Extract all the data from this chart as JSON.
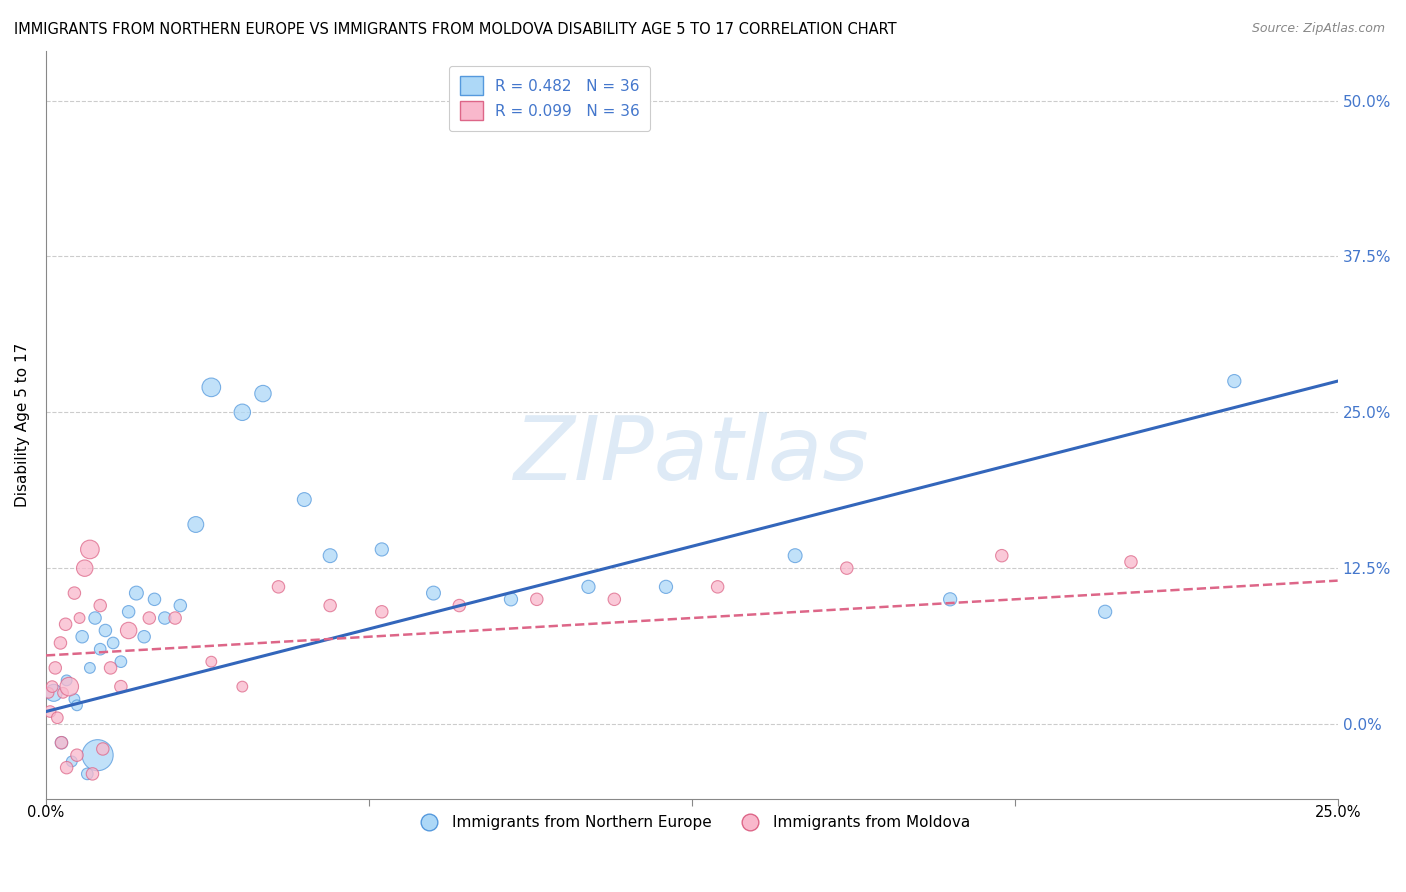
{
  "title": "IMMIGRANTS FROM NORTHERN EUROPE VS IMMIGRANTS FROM MOLDOVA DISABILITY AGE 5 TO 17 CORRELATION CHART",
  "source": "Source: ZipAtlas.com",
  "ylabel": "Disability Age 5 to 17",
  "ytick_labels": [
    "0.0%",
    "12.5%",
    "25.0%",
    "37.5%",
    "50.0%"
  ],
  "ytick_values": [
    0,
    12.5,
    25.0,
    37.5,
    50.0
  ],
  "xlim": [
    0,
    25
  ],
  "ylim": [
    -6,
    54
  ],
  "legend_r1": "R = 0.482",
  "legend_n1": "N = 36",
  "legend_r2": "R = 0.099",
  "legend_n2": "N = 36",
  "series1_label": "Immigrants from Northern Europe",
  "series2_label": "Immigrants from Moldova",
  "series1_color": "#add8f7",
  "series1_edge_color": "#5599dd",
  "series2_color": "#f9b8cc",
  "series2_edge_color": "#dd6688",
  "trendline1_color": "#3366bb",
  "trendline2_color": "#dd6688",
  "background_color": "#ffffff",
  "grid_color": "#cccccc",
  "blue_x": [
    0.15,
    0.3,
    0.4,
    0.55,
    0.7,
    0.85,
    0.95,
    1.05,
    1.15,
    1.3,
    1.45,
    1.6,
    1.75,
    1.9,
    2.1,
    2.3,
    2.6,
    2.9,
    3.2,
    3.8,
    4.2,
    5.0,
    5.5,
    6.5,
    7.5,
    9.0,
    10.5,
    12.0,
    14.5,
    17.5,
    20.5,
    23.0,
    0.5,
    0.6,
    0.8,
    1.0
  ],
  "blue_y": [
    2.5,
    -1.5,
    3.5,
    2.0,
    7.0,
    4.5,
    8.5,
    6.0,
    7.5,
    6.5,
    5.0,
    9.0,
    10.5,
    7.0,
    10.0,
    8.5,
    9.5,
    16.0,
    27.0,
    25.0,
    26.5,
    18.0,
    13.5,
    14.0,
    10.5,
    10.0,
    11.0,
    11.0,
    13.5,
    10.0,
    9.0,
    27.5,
    -3.0,
    1.5,
    -4.0,
    -2.5
  ],
  "blue_sizes": [
    150,
    80,
    60,
    60,
    80,
    60,
    80,
    70,
    80,
    70,
    70,
    80,
    100,
    80,
    80,
    80,
    80,
    130,
    180,
    140,
    140,
    100,
    100,
    90,
    100,
    90,
    90,
    90,
    100,
    90,
    90,
    90,
    60,
    60,
    70,
    500
  ],
  "pink_x": [
    0.05,
    0.08,
    0.12,
    0.18,
    0.22,
    0.28,
    0.33,
    0.38,
    0.45,
    0.55,
    0.65,
    0.75,
    0.85,
    1.05,
    1.25,
    1.45,
    1.6,
    2.0,
    2.5,
    3.2,
    3.8,
    4.5,
    5.5,
    6.5,
    8.0,
    9.5,
    11.0,
    13.0,
    15.5,
    18.5,
    21.0,
    0.3,
    0.4,
    0.6,
    0.9,
    1.1
  ],
  "pink_y": [
    2.5,
    1.0,
    3.0,
    4.5,
    0.5,
    6.5,
    2.5,
    8.0,
    3.0,
    10.5,
    8.5,
    12.5,
    14.0,
    9.5,
    4.5,
    3.0,
    7.5,
    8.5,
    8.5,
    5.0,
    3.0,
    11.0,
    9.5,
    9.0,
    9.5,
    10.0,
    10.0,
    11.0,
    12.5,
    13.5,
    13.0,
    -1.5,
    -3.5,
    -2.5,
    -4.0,
    -2.0
  ],
  "pink_sizes": [
    60,
    70,
    70,
    80,
    70,
    80,
    60,
    80,
    180,
    80,
    60,
    140,
    180,
    80,
    80,
    80,
    140,
    80,
    80,
    60,
    60,
    80,
    80,
    80,
    80,
    80,
    80,
    80,
    80,
    80,
    80,
    80,
    80,
    80,
    80,
    80
  ],
  "trendline1_x": [
    0,
    25
  ],
  "trendline1_y": [
    1.0,
    27.5
  ],
  "trendline2_x": [
    0,
    25
  ],
  "trendline2_y": [
    5.5,
    11.5
  ],
  "watermark_text": "ZIPatlas",
  "watermark_color": "#c8ddf0",
  "watermark_alpha": 0.6
}
